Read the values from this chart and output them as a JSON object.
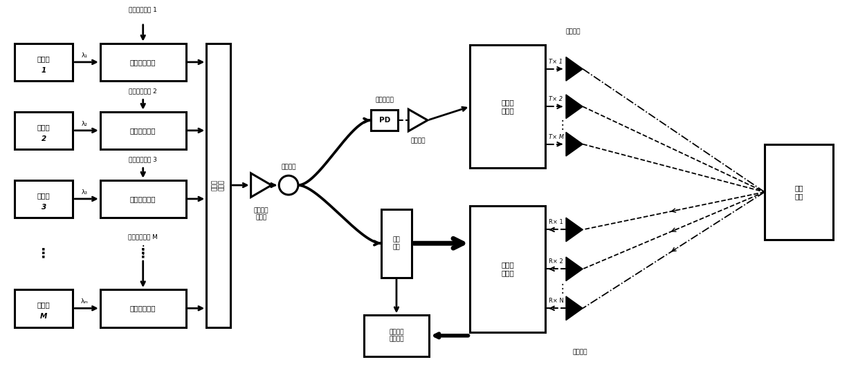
{
  "fig_width": 12.4,
  "fig_height": 5.53,
  "bg_color": "#ffffff",
  "text_color": "#000000",
  "lasers": [
    "激光器",
    "激光器",
    "激光器",
    "激光器"
  ],
  "laser_nums": [
    "1",
    "2",
    "3",
    "M"
  ],
  "laser_lambdas": [
    "λ₁",
    "λ₂",
    "λ₃",
    "λₘ"
  ],
  "modulator_label": "双平行调制器",
  "lfm_labels": [
    "线性调频信号 1",
    "线性调频信号 2",
    "线性调频信号 3",
    "线性调频信号 M"
  ],
  "wdm_label": "光波分\n复用器",
  "coupler_label": "光耦合器",
  "amplifier_label": "掺铒光纤\n放大器",
  "pd_label": "光电探测器",
  "pd_box": "PD",
  "elec_amp_label": "电放大器",
  "tx_array_label": "信号发\n射阵列",
  "splitter_label": "光分\n束器",
  "rx_array_label": "信号接\n收阵列",
  "dsp_label": "数字信号\n处理模块",
  "target_label": "探测\n目标",
  "tx_antenna_label": "发射天线",
  "rx_antenna_label": "接收天线",
  "tx_labels": [
    "T× 1",
    "T× 2",
    "T× M"
  ],
  "rx_labels": [
    "R× 1",
    "R× 2",
    "R× N"
  ],
  "dots": "⋯"
}
